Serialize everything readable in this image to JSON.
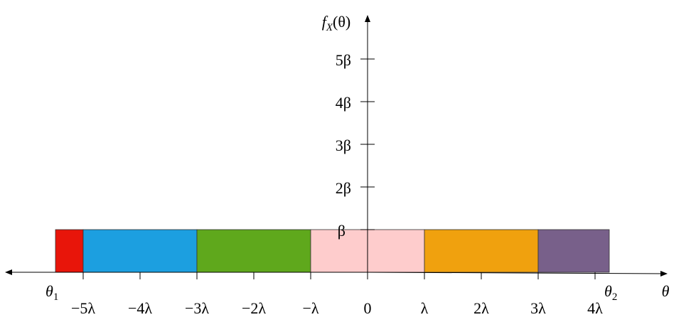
{
  "axis_labels": {
    "x": "θ",
    "y": {
      "base": "f",
      "subscript": "X",
      "rest": "(θ)"
    }
  },
  "x_ticks": [
    "−5λ",
    "−4λ",
    "−3λ",
    "−2λ",
    "−λ",
    "0",
    "λ",
    "2λ",
    "3λ",
    "4λ"
  ],
  "y_ticks": [
    "β",
    "2β",
    "3β",
    "4β",
    "5β"
  ],
  "bounds": [
    {
      "symbol": "θ",
      "subscript": "1"
    },
    {
      "symbol": "θ",
      "subscript": "2"
    }
  ]
}
